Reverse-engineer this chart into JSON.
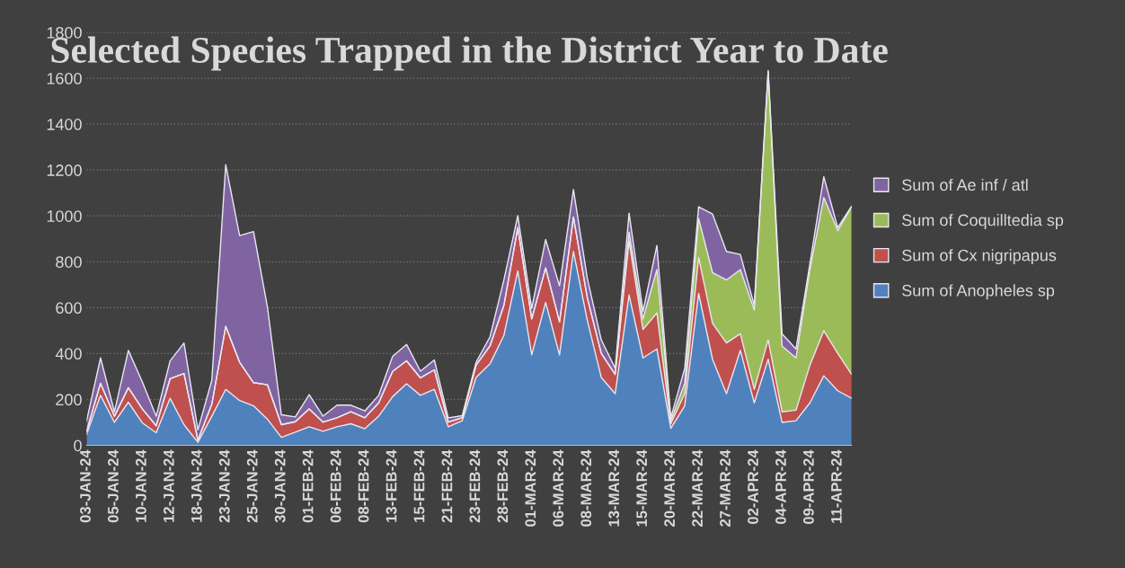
{
  "chart_data": {
    "type": "area",
    "stacked": true,
    "title": "Selected Species Trapped in the District Year to Date",
    "categories": [
      "03-JAN-24",
      null,
      "05-JAN-24",
      null,
      "10-JAN-24",
      null,
      "12-JAN-24",
      null,
      "18-JAN-24",
      null,
      "23-JAN-24",
      null,
      "25-JAN-24",
      null,
      "30-JAN-24",
      null,
      "01-FEB-24",
      null,
      "06-FEB-24",
      null,
      "08-FEB-24",
      null,
      "13-FEB-24",
      null,
      "15-FEB-24",
      null,
      "21-FEB-24",
      null,
      "23-FEB-24",
      null,
      "28-FEB-24",
      null,
      "01-MAR-24",
      null,
      "06-MAR-24",
      null,
      "08-MAR-24",
      null,
      "13-MAR-24",
      null,
      "15-MAR-24",
      null,
      "20-MAR-24",
      null,
      "22-MAR-24",
      null,
      "27-MAR-24",
      null,
      "02-APR-24",
      null,
      "04-APR-24",
      null,
      "09-APR-24",
      null,
      "11-APR-24",
      null
    ],
    "series": [
      {
        "name": "Sum of Anopheles sp",
        "color": "#4f81bd",
        "values": [
          48,
          218,
          100,
          188,
          98,
          55,
          205,
          90,
          13,
          127,
          244,
          195,
          172,
          114,
          35,
          57,
          81,
          61,
          81,
          94,
          72,
          127,
          212,
          268,
          218,
          244,
          81,
          107,
          296,
          355,
          479,
          760,
          394,
          623,
          394,
          845,
          544,
          296,
          225,
          655,
          381,
          420,
          74,
          172,
          662,
          375,
          225,
          414,
          185,
          375,
          100,
          107,
          185,
          303,
          238,
          205
        ]
      },
      {
        "name": "Sum of Cx nigripapus",
        "color": "#c0504d",
        "values": [
          13,
          52,
          27,
          63,
          61,
          30,
          85,
          223,
          9,
          52,
          274,
          167,
          101,
          150,
          55,
          46,
          78,
          40,
          39,
          52,
          48,
          58,
          110,
          100,
          76,
          85,
          20,
          13,
          53,
          78,
          131,
          189,
          157,
          150,
          144,
          150,
          98,
          105,
          84,
          235,
          124,
          157,
          20,
          53,
          157,
          156,
          221,
          72,
          59,
          85,
          46,
          46,
          164,
          196,
          163,
          104
        ]
      },
      {
        "name": "Sum of Coquilltedia sp",
        "color": "#9bbb59",
        "values": [
          0,
          0,
          0,
          0,
          0,
          0,
          0,
          0,
          0,
          0,
          0,
          0,
          0,
          0,
          0,
          0,
          0,
          0,
          0,
          0,
          0,
          0,
          0,
          0,
          0,
          0,
          0,
          0,
          0,
          0,
          0,
          0,
          0,
          0,
          0,
          0,
          0,
          0,
          0,
          40,
          46,
          189,
          13,
          45,
          169,
          222,
          275,
          280,
          346,
          1168,
          287,
          228,
          417,
          581,
          535,
          731
        ]
      },
      {
        "name": "Sum of Ae inf / atl",
        "color": "#8064a2",
        "values": [
          46,
          111,
          19,
          163,
          118,
          42,
          78,
          133,
          46,
          104,
          705,
          552,
          659,
          339,
          43,
          21,
          62,
          26,
          55,
          29,
          30,
          33,
          66,
          72,
          29,
          43,
          19,
          9,
          13,
          40,
          111,
          52,
          46,
          124,
          157,
          120,
          85,
          59,
          27,
          82,
          33,
          105,
          13,
          65,
          52,
          255,
          124,
          66,
          20,
          6,
          53,
          39,
          26,
          91,
          13,
          3
        ]
      }
    ],
    "ylim": [
      0,
      1800
    ],
    "yticks": [
      0,
      200,
      400,
      600,
      800,
      1000,
      1200,
      1400,
      1600,
      1800
    ],
    "grid": "y",
    "legend": "right"
  }
}
